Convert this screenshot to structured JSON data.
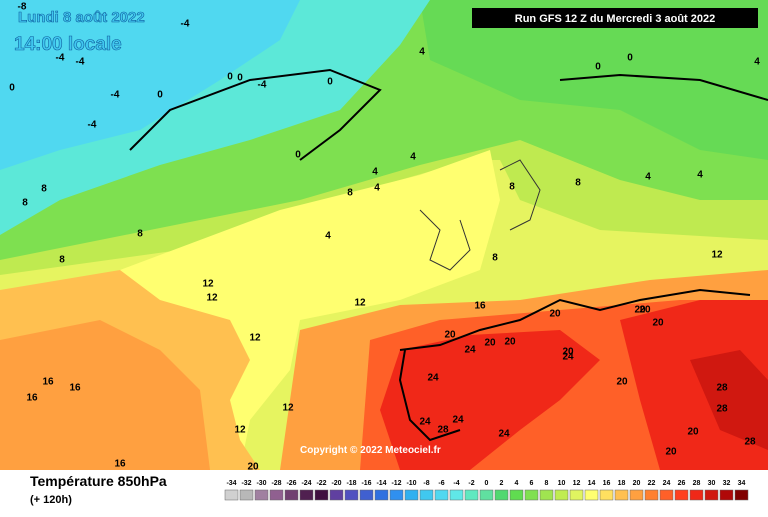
{
  "header": {
    "date": "Lundi 8 août 2022",
    "time": "14:00 locale",
    "run": "Run GFS 12 Z du Mercredi 3 août 2022"
  },
  "footer": {
    "title": "Température 850hPa",
    "lead": "(+ 120h)",
    "copyright": "Copyright © 2022 Meteociel.fr"
  },
  "legend": {
    "values": [
      -34,
      -32,
      -30,
      -28,
      -26,
      -24,
      -22,
      -20,
      -18,
      -16,
      -14,
      -12,
      -10,
      -8,
      -6,
      -4,
      -2,
      0,
      2,
      4,
      6,
      8,
      10,
      12,
      14,
      16,
      18,
      20,
      22,
      24,
      26,
      28,
      30,
      32,
      34
    ],
    "colors": [
      "#d0d0d0",
      "#b8b8b8",
      "#a080a0",
      "#906090",
      "#704070",
      "#502050",
      "#401040",
      "#6040a0",
      "#5050c0",
      "#4060d0",
      "#3070e0",
      "#3090f0",
      "#30b0f0",
      "#40c8f0",
      "#50d8f0",
      "#60e8e8",
      "#60e8c0",
      "#60e0a0",
      "#50d870",
      "#60dc50",
      "#80e050",
      "#a0e450",
      "#c0ec50",
      "#e0f460",
      "#ffff70",
      "#ffe060",
      "#ffc050",
      "#ffa040",
      "#ff8030",
      "#ff6028",
      "#ff4020",
      "#f02818",
      "#d01810",
      "#b00808",
      "#800000"
    ]
  },
  "map": {
    "labels": [
      "-8",
      "-4",
      "-4",
      "-4",
      "0",
      "0",
      "-4",
      "0",
      "0",
      "-4",
      "-4",
      "0",
      "0",
      "4",
      "4",
      "0",
      "0",
      "4",
      "4",
      "8",
      "4",
      "8",
      "4",
      "8",
      "8",
      "8",
      "8",
      "4",
      "4",
      "8",
      "8",
      "12",
      "12",
      "12",
      "12",
      "12",
      "12",
      "12",
      "16",
      "16",
      "16",
      "16",
      "16",
      "20",
      "20",
      "20",
      "20",
      "20",
      "24",
      "24",
      "24",
      "24",
      "24",
      "28",
      "28",
      "28",
      "20",
      "20",
      "20",
      "24",
      "28",
      "20",
      "20",
      "20",
      "20"
    ]
  }
}
